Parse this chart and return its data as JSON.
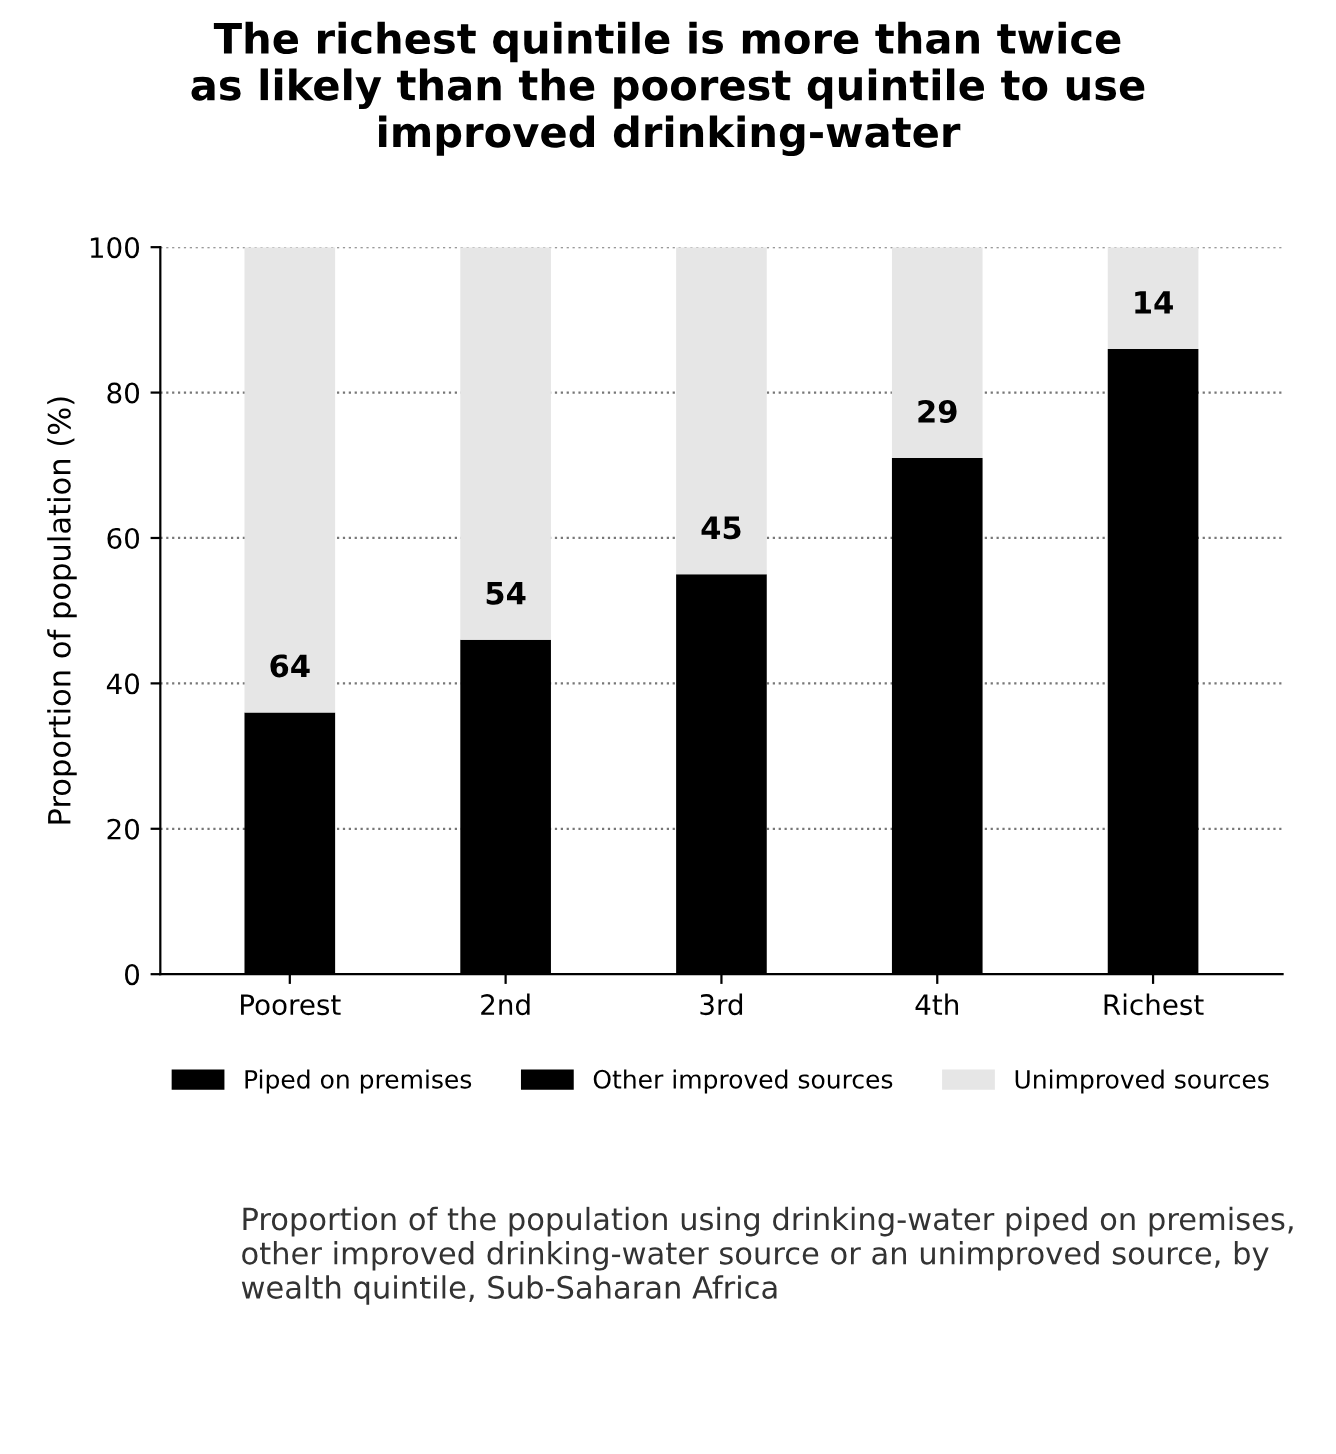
{
  "chart_data": {
    "type": "bar",
    "stacked": true,
    "title": "The richest quintile is more than twice\nas likely than the poorest quintile to use\nimproved drinking-water",
    "ylabel": "Proportion of population (%)",
    "categories": [
      "Poorest",
      "2nd",
      "3rd",
      "4th",
      "Richest"
    ],
    "series": [
      {
        "name": "Piped on premises",
        "color": "#000000",
        "values": [
          null,
          null,
          null,
          null,
          null
        ]
      },
      {
        "name": "Other improved sources",
        "color": "#000000",
        "values": [
          36,
          46,
          55,
          71,
          86
        ]
      },
      {
        "name": "Unimproved sources",
        "color": "#e6e6e6",
        "values": [
          64,
          54,
          45,
          29,
          14
        ],
        "value_labels": [
          "64",
          "54",
          "45",
          "29",
          "14"
        ]
      }
    ],
    "ylim": [
      0,
      100
    ],
    "yticks": [
      0,
      20,
      40,
      60,
      80,
      100
    ],
    "grid": "y",
    "legend": "bottom",
    "annotations": [
      "Proportion of the population using drinking-water piped on premises, other improved drinking-water source or an unimproved source, by wealth quintile, Sub-Saharan Africa"
    ]
  }
}
